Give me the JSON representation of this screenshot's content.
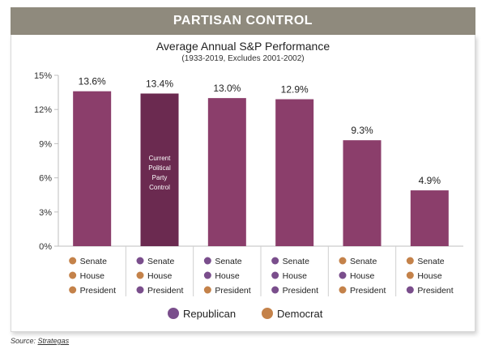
{
  "header": {
    "banner": "PARTISAN CONTROL"
  },
  "chart_data": {
    "type": "bar",
    "title": "Average Annual S&P Performance",
    "subtitle": "(1933-2019, Excludes 2001-2002)",
    "ylim": [
      0,
      15
    ],
    "yticks": [
      0,
      3,
      6,
      9,
      12,
      15
    ],
    "ytick_labels": [
      "0%",
      "3%",
      "6%",
      "9%",
      "12%",
      "15%"
    ],
    "values": [
      13.6,
      13.4,
      13.0,
      12.9,
      9.3,
      4.9
    ],
    "data_labels": [
      "13.6%",
      "13.4%",
      "13.0%",
      "12.9%",
      "9.3%",
      "4.9%"
    ],
    "bar_colors": [
      "#8b3e6b",
      "#6b2a50",
      "#8b3e6b",
      "#8b3e6b",
      "#8b3e6b",
      "#8b3e6b"
    ],
    "highlight_index": 1,
    "highlight_label": [
      "Current",
      "Political",
      "Party",
      "Control"
    ],
    "row_labels": [
      "Senate",
      "House",
      "President"
    ],
    "party_control": [
      [
        "D",
        "D",
        "D"
      ],
      [
        "R",
        "D",
        "R"
      ],
      [
        "R",
        "R",
        "D"
      ],
      [
        "R",
        "R",
        "R"
      ],
      [
        "D",
        "R",
        "D"
      ],
      [
        "D",
        "D",
        "R"
      ]
    ],
    "legend": [
      {
        "key": "R",
        "label": "Republican",
        "color": "#7a4e8c"
      },
      {
        "key": "D",
        "label": "Democrat",
        "color": "#c4824a"
      }
    ],
    "grid": false
  },
  "source": {
    "prefix": "Source:",
    "name": "Strategas"
  }
}
